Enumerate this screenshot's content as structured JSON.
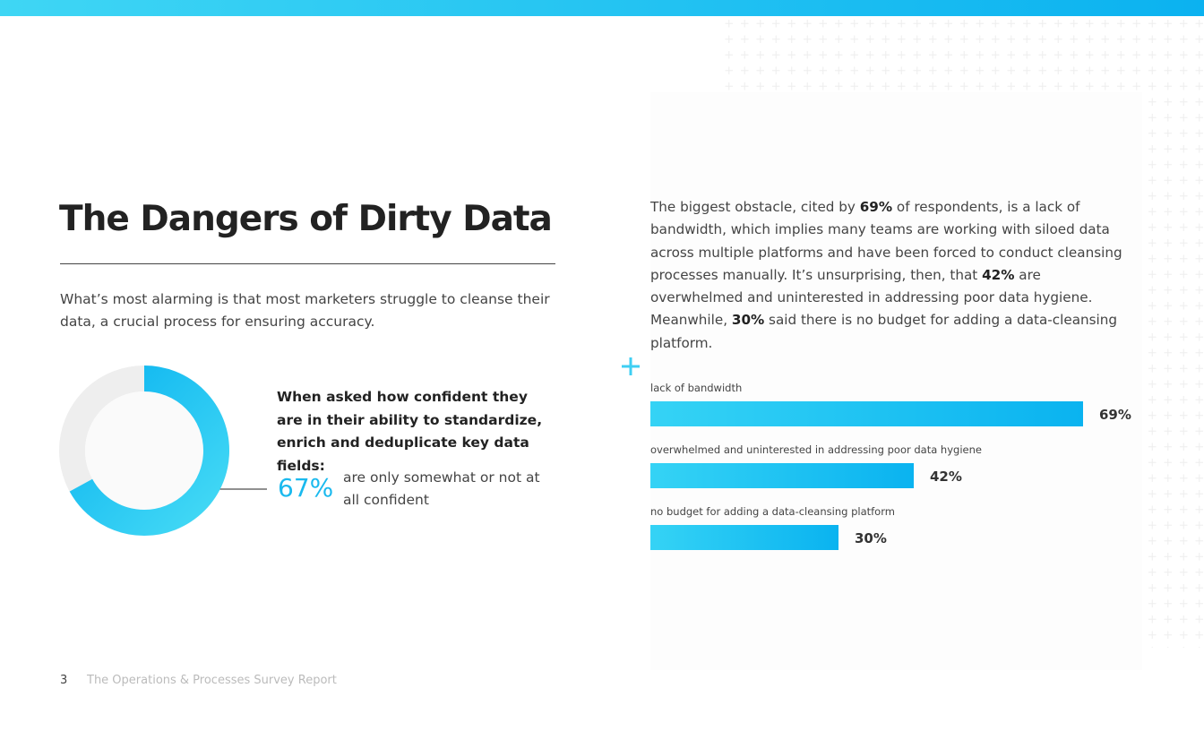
{
  "header": {
    "title": "The Dangers of Dirty Data"
  },
  "intro": "What’s most alarming is that most marketers struggle to cleanse their data, a crucial process for ensuring accuracy.",
  "paragraph": [
    "The biggest obstacle, cited by ",
    "69%",
    " of respondents, is a lack of bandwidth, which implies many teams are working with siloed data across multiple platforms and have been forced to conduct cleansing processes manually. It’s unsurprising, then, that ",
    "42%",
    " are overwhelmed and uninterested in addressing poor data hygiene. Meanwhile, ",
    "30%",
    " said there is no budget for adding a data-cleansing platform."
  ],
  "donut": {
    "question": "When asked how confident they are in their ability to standardize, enrich and deduplicate key data fields:",
    "value": 67,
    "value_label": "67%",
    "caption": "are only somewhat or not at all confident"
  },
  "bars": {
    "categories": [
      "lack of bandwidth",
      "overwhelmed and uninterested in addressing poor data hygiene",
      "no budget for adding a data-cleansing platform"
    ],
    "values": [
      69,
      42,
      30
    ],
    "value_labels": [
      "69%",
      "42%",
      "30%"
    ]
  },
  "footer": {
    "page": "3",
    "report": "The Operations & Processes Survey Report"
  }
}
